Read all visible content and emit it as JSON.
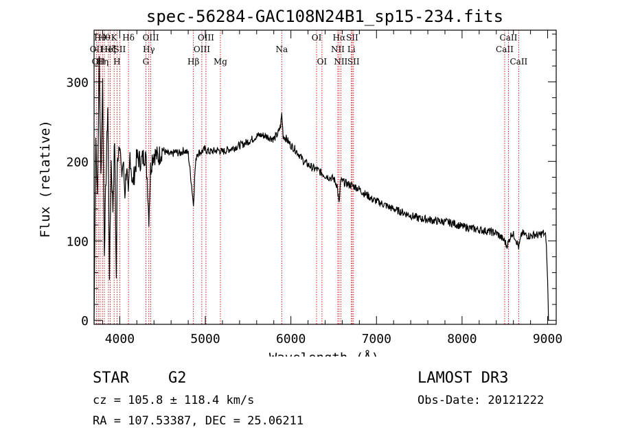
{
  "chart_data": {
    "type": "line",
    "title": "spec-56284-GAC108N24B1_sp15-234.fits",
    "xlabel": "Wavelength (Å)",
    "ylabel": "Flux (relative)",
    "xlim": [
      3700,
      9100
    ],
    "ylim": [
      -5,
      365
    ],
    "xticks": [
      4000,
      5000,
      6000,
      7000,
      8000,
      9000
    ],
    "xtick_labels": [
      "4000",
      "5000",
      "6000",
      "7000",
      "8000",
      "9000"
    ],
    "yticks": [
      0,
      100,
      200,
      300
    ],
    "ytick_labels": [
      "0",
      "100",
      "200",
      "300"
    ],
    "grid": false,
    "series": [
      {
        "name": "flux",
        "x": [
          3700,
          3720,
          3740,
          3760,
          3780,
          3800,
          3820,
          3840,
          3860,
          3880,
          3900,
          3920,
          3940,
          3960,
          3970,
          3980,
          4000,
          4020,
          4040,
          4060,
          4080,
          4100,
          4120,
          4150,
          4200,
          4250,
          4300,
          4320,
          4340,
          4360,
          4380,
          4400,
          4450,
          4500,
          4550,
          4600,
          4650,
          4700,
          4750,
          4800,
          4840,
          4861,
          4880,
          4900,
          4950,
          5000,
          5050,
          5100,
          5150,
          5200,
          5250,
          5300,
          5350,
          5400,
          5450,
          5500,
          5550,
          5600,
          5650,
          5700,
          5750,
          5800,
          5850,
          5880,
          5893,
          5910,
          5950,
          6000,
          6050,
          6100,
          6150,
          6200,
          6250,
          6300,
          6350,
          6400,
          6450,
          6500,
          6540,
          6563,
          6580,
          6600,
          6650,
          6700,
          6750,
          6800,
          6850,
          6900,
          6950,
          7000,
          7100,
          7200,
          7300,
          7400,
          7500,
          7600,
          7700,
          7800,
          7900,
          8000,
          8100,
          8200,
          8300,
          8400,
          8498,
          8520,
          8542,
          8580,
          8620,
          8662,
          8700,
          8750,
          8800,
          8850,
          8900,
          8950,
          8980,
          9000,
          9010
        ],
        "y": [
          0,
          230,
          160,
          330,
          180,
          300,
          90,
          180,
          270,
          60,
          200,
          140,
          230,
          50,
          190,
          210,
          230,
          180,
          200,
          160,
          195,
          150,
          210,
          170,
          205,
          200,
          210,
          180,
          130,
          190,
          205,
          210,
          205,
          215,
          210,
          208,
          212,
          210,
          214,
          210,
          170,
          145,
          190,
          210,
          212,
          215,
          212,
          213,
          214,
          212,
          214,
          216,
          218,
          220,
          222,
          225,
          228,
          232,
          233,
          232,
          230,
          228,
          235,
          245,
          260,
          232,
          228,
          220,
          215,
          208,
          200,
          196,
          192,
          190,
          186,
          182,
          180,
          178,
          170,
          145,
          175,
          175,
          172,
          170,
          168,
          165,
          160,
          157,
          152,
          150,
          145,
          140,
          136,
          132,
          128,
          127,
          125,
          124,
          122,
          118,
          116,
          114,
          112,
          110,
          100,
          94,
          98,
          110,
          105,
          92,
          110,
          107,
          106,
          108,
          107,
          110,
          105,
          50,
          0
        ]
      }
    ],
    "line_markers": [
      {
        "wavelength": 3727,
        "label": "OII",
        "row": 2
      },
      {
        "wavelength": 3750,
        "label": "OII",
        "row": 3
      },
      {
        "wavelength": 3771,
        "label": "Hθ",
        "row": 1
      },
      {
        "wavelength": 3798,
        "label": "Hη",
        "row": 3
      },
      {
        "wavelength": 3820,
        "label": "Hθ",
        "row": 1
      },
      {
        "wavelength": 3868,
        "label": "HeI",
        "row": 2
      },
      {
        "wavelength": 3889,
        "label": "Hζ",
        "row": 2
      },
      {
        "wavelength": 3934,
        "label": "K",
        "row": 1
      },
      {
        "wavelength": 3968,
        "label": "H",
        "row": 3
      },
      {
        "wavelength": 4000,
        "label": "SII",
        "row": 2
      },
      {
        "wavelength": 4102,
        "label": "Hδ",
        "row": 1
      },
      {
        "wavelength": 4305,
        "label": "G",
        "row": 3
      },
      {
        "wavelength": 4340,
        "label": "Hγ",
        "row": 2
      },
      {
        "wavelength": 4363,
        "label": "OIII",
        "row": 1
      },
      {
        "wavelength": 4861,
        "label": "Hβ",
        "row": 3
      },
      {
        "wavelength": 4959,
        "label": "OIII",
        "row": 2
      },
      {
        "wavelength": 5007,
        "label": "OIII",
        "row": 1
      },
      {
        "wavelength": 5176,
        "label": "Mg",
        "row": 3
      },
      {
        "wavelength": 5893,
        "label": "Na",
        "row": 2
      },
      {
        "wavelength": 6300,
        "label": "OI",
        "row": 1
      },
      {
        "wavelength": 6363,
        "label": "OI",
        "row": 3
      },
      {
        "wavelength": 6548,
        "label": "NII",
        "row": 2
      },
      {
        "wavelength": 6563,
        "label": "Hα",
        "row": 1
      },
      {
        "wavelength": 6583,
        "label": "NII",
        "row": 3
      },
      {
        "wavelength": 6707,
        "label": "Li",
        "row": 2
      },
      {
        "wavelength": 6716,
        "label": "SII",
        "row": 1
      },
      {
        "wavelength": 6731,
        "label": "SII",
        "row": 3
      },
      {
        "wavelength": 8498,
        "label": "CaII",
        "row": 2
      },
      {
        "wavelength": 8542,
        "label": "CaII",
        "row": 1
      },
      {
        "wavelength": 8662,
        "label": "CaII",
        "row": 3
      }
    ]
  },
  "info": {
    "class_label": "STAR",
    "subclass_label": "G2",
    "velocity": "cz = 105.8 ± 118.4 km/s",
    "coordinates": "RA = 107.53387, DEC =  25.06211",
    "survey": "LAMOST DR3",
    "obs_date": "Obs-Date: 20121222"
  },
  "colors": {
    "axis": "#000000",
    "spectrum": "#000000",
    "marker_line": "#cc0000"
  }
}
